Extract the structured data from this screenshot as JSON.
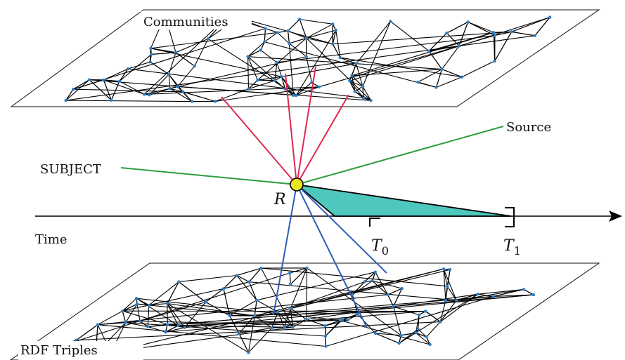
{
  "planes": {
    "top_label": "Communities",
    "bottom_label": "RDF Triples"
  },
  "labels": {
    "source": "Source",
    "subject": "SUBJECT",
    "resource": "R",
    "time": "Time",
    "t0_base": "T",
    "t0_sub": "0",
    "t1_base": "T",
    "t1_sub": "1"
  },
  "colors": {
    "community_link": "#e0284f",
    "triple_link": "#2d5cb8",
    "source_subject_link": "#2e9e3e",
    "interval_fill": "#4ec7bd",
    "resource_node": "#e8e61f",
    "network_node": "#2a7fc9"
  }
}
